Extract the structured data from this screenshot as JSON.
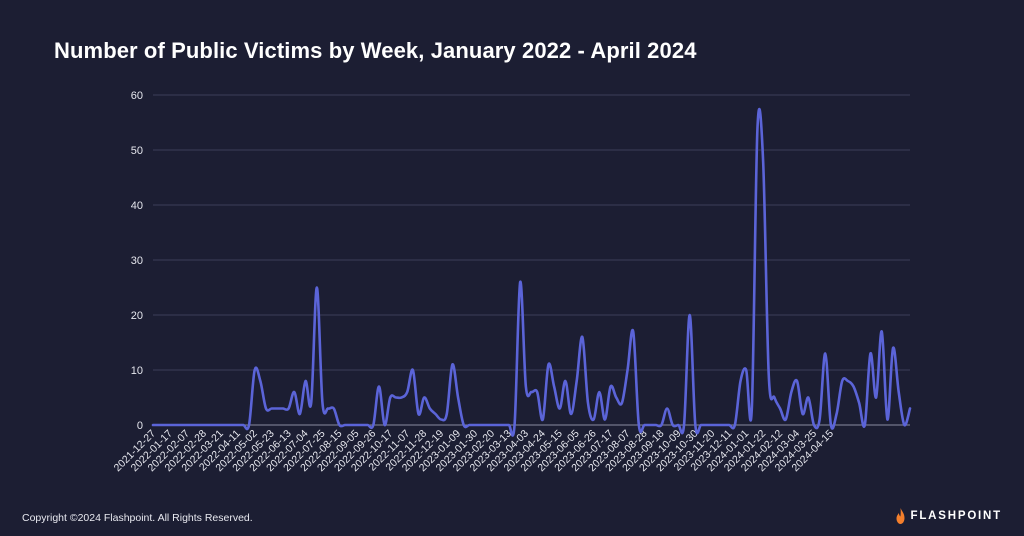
{
  "chart_data": {
    "type": "line",
    "title": "Number of Public Victims by Week, January 2022 - April 2024",
    "xlabel": "",
    "ylabel": "",
    "ylim": [
      0,
      60
    ],
    "yticks": [
      0,
      10,
      20,
      30,
      40,
      50,
      60
    ],
    "grid": "horizontal",
    "line_color": "#5b64d8",
    "x_tick_labels": [
      "2021-12-27",
      "2022-01-17",
      "2022-02-07",
      "2022-02-28",
      "2022-03-21",
      "2022-04-11",
      "2022-05-02",
      "2022-05-23",
      "2022-06-13",
      "2022-07-04",
      "2022-07-25",
      "2022-08-15",
      "2022-09-05",
      "2022-09-26",
      "2022-10-17",
      "2022-11-07",
      "2022-11-28",
      "2022-12-19",
      "2023-01-09",
      "2023-01-30",
      "2023-02-20",
      "2023-03-13",
      "2023-04-03",
      "2023-04-24",
      "2023-05-15",
      "2023-06-05",
      "2023-06-26",
      "2023-07-17",
      "2023-08-07",
      "2023-08-28",
      "2023-09-18",
      "2023-10-09",
      "2023-10-30",
      "2023-11-20",
      "2023-12-11",
      "2024-01-01",
      "2024-01-22",
      "2024-02-12",
      "2024-03-04",
      "2024-03-25",
      "2024-04-15"
    ],
    "series": [
      {
        "values": [
          0,
          0,
          0,
          0,
          0,
          0,
          0,
          0,
          0,
          0,
          0,
          0,
          0,
          0,
          0,
          0,
          0,
          0,
          10,
          8,
          3,
          3,
          3,
          3,
          3,
          6,
          2,
          8,
          4,
          25,
          4,
          3,
          3,
          0,
          0,
          0,
          0,
          0,
          0,
          0,
          7,
          0,
          5,
          5,
          5,
          6,
          10,
          2,
          5,
          3,
          2,
          1,
          2,
          11,
          5,
          0,
          0,
          0,
          0,
          0,
          0,
          0,
          0,
          0,
          0,
          26,
          7,
          6,
          6,
          1,
          11,
          7,
          3,
          8,
          2,
          8,
          16,
          4,
          1,
          6,
          1,
          7,
          5,
          4,
          10,
          17,
          0,
          0,
          0,
          0,
          0,
          3,
          0,
          0,
          0,
          20,
          0,
          0,
          0,
          0,
          0,
          0,
          0,
          0,
          8,
          10,
          3,
          54,
          48,
          9,
          5,
          3,
          1,
          6,
          8,
          2,
          5,
          0,
          1,
          13,
          0,
          2,
          8,
          8,
          7,
          4,
          0,
          13,
          5,
          17,
          1,
          14,
          6,
          0,
          3
        ]
      }
    ]
  },
  "footer": {
    "copyright": "Copyright  ©2024 Flashpoint. All Rights Reserved.",
    "brand": "FLASHPOINT",
    "brand_icon": "flame-icon",
    "brand_icon_color": "#f47f2c"
  }
}
